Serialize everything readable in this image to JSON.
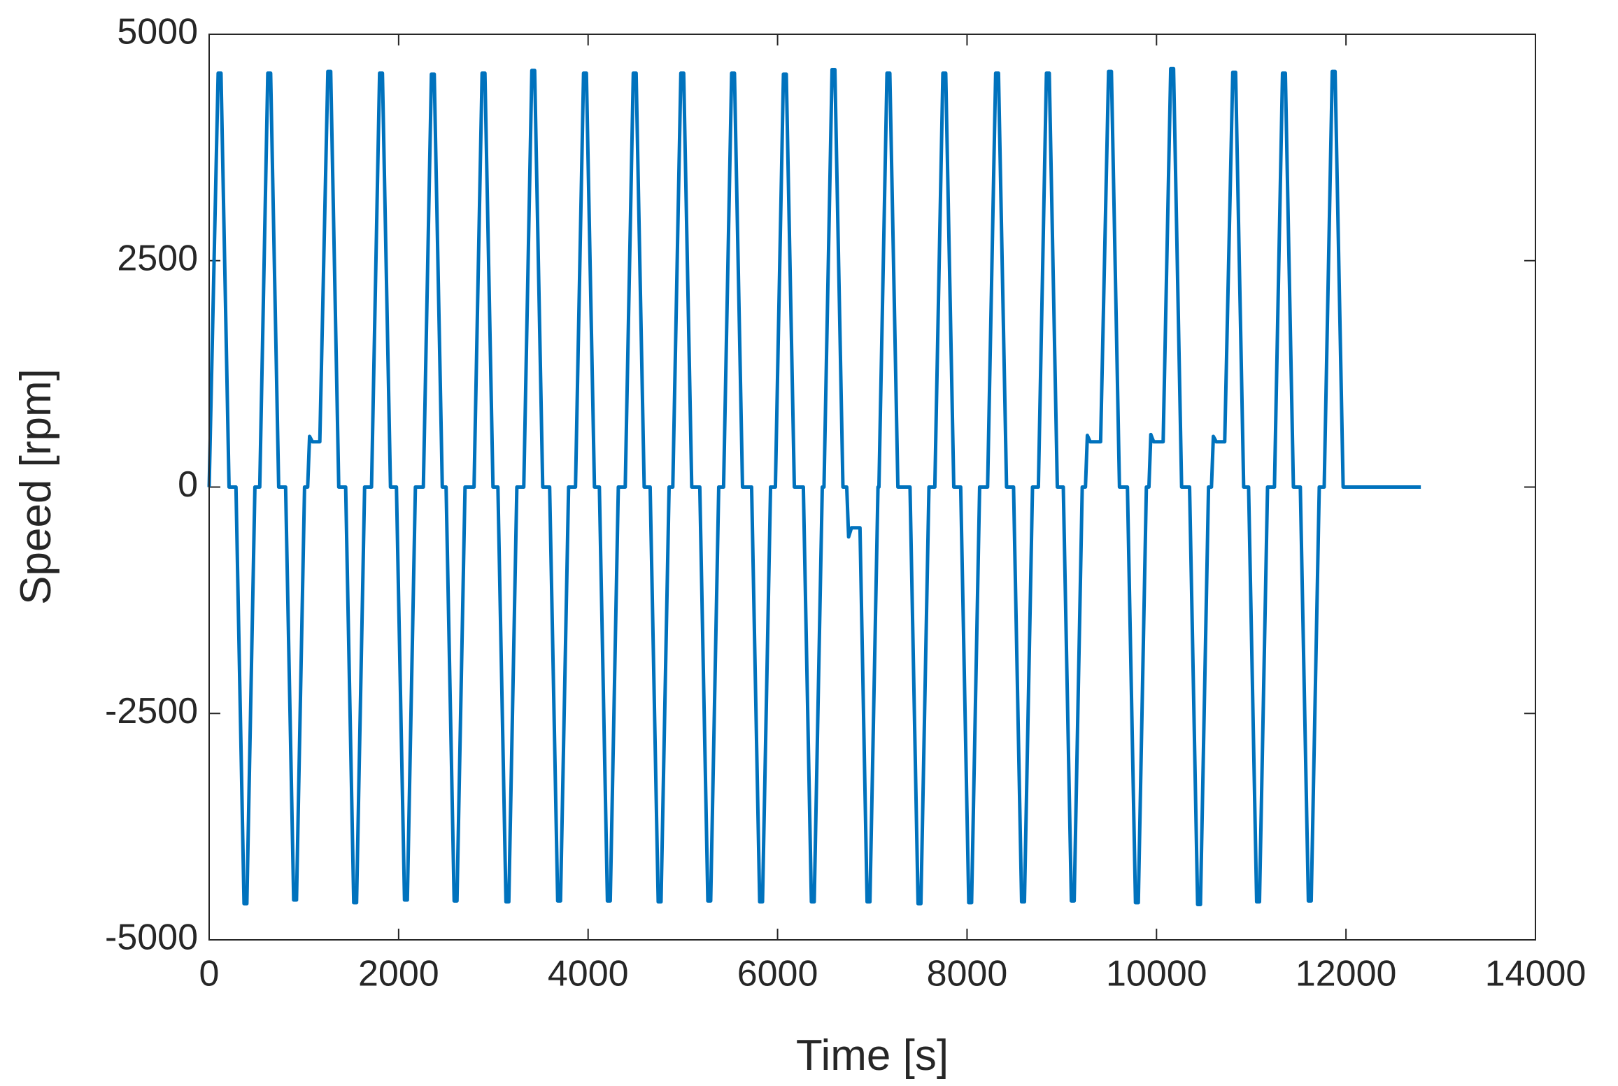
{
  "chart_data": {
    "type": "line",
    "x_label": "Time [s]",
    "y_label": "Speed [rpm]",
    "color": "#0072bd",
    "xlim": [
      0,
      14000
    ],
    "xticks": [
      0,
      2000,
      4000,
      6000,
      8000,
      10000,
      12000,
      14000
    ],
    "ylim": [
      -5000,
      5000
    ],
    "yticks": [
      -5000,
      -2500,
      0,
      2500,
      5000
    ],
    "grid": false,
    "x": [
      0,
      95,
      125,
      210,
      283,
      368,
      398,
      483,
      534,
      619,
      649,
      734,
      807,
      892,
      922,
      1007,
      1040,
      1060,
      1090,
      1168,
      1253,
      1283,
      1368,
      1441,
      1526,
      1556,
      1641,
      1714,
      1799,
      1829,
      1914,
      1977,
      2062,
      2092,
      2177,
      2261,
      2346,
      2376,
      2461,
      2501,
      2586,
      2616,
      2701,
      2796,
      2881,
      2911,
      2996,
      3048,
      3133,
      3163,
      3248,
      3321,
      3406,
      3436,
      3521,
      3594,
      3679,
      3709,
      3794,
      3867,
      3952,
      3982,
      4067,
      4119,
      4204,
      4234,
      4319,
      4392,
      4477,
      4507,
      4592,
      4655,
      4740,
      4770,
      4855,
      4894,
      4979,
      5009,
      5094,
      5179,
      5264,
      5294,
      5379,
      5430,
      5515,
      5545,
      5630,
      5726,
      5811,
      5841,
      5926,
      5977,
      6062,
      6092,
      6177,
      6272,
      6357,
      6387,
      6472,
      6490,
      6575,
      6605,
      6690,
      6730,
      6750,
      6780,
      6870,
      6945,
      6975,
      7060,
      7070,
      7155,
      7185,
      7270,
      7398,
      7483,
      7513,
      7598,
      7660,
      7745,
      7775,
      7860,
      7933,
      8018,
      8048,
      8133,
      8217,
      8302,
      8332,
      8417,
      8491,
      8576,
      8606,
      8691,
      8753,
      8838,
      8868,
      8953,
      9016,
      9101,
      9131,
      9216,
      9250,
      9270,
      9300,
      9410,
      9494,
      9524,
      9609,
      9693,
      9778,
      9808,
      9893,
      9920,
      9940,
      9970,
      10070,
      10150,
      10180,
      10265,
      10349,
      10434,
      10464,
      10549,
      10580,
      10600,
      10630,
      10720,
      10805,
      10835,
      10920,
      10972,
      11057,
      11087,
      11172,
      11245,
      11330,
      11360,
      11445,
      11518,
      11603,
      11633,
      11718,
      11770,
      11855,
      11885,
      11970,
      12790
    ],
    "values": [
      0,
      4570,
      4570,
      0,
      0,
      -4600,
      -4600,
      0,
      0,
      4570,
      4570,
      0,
      0,
      -4560,
      -4560,
      0,
      0,
      560,
      500,
      500,
      4590,
      4590,
      0,
      0,
      -4590,
      -4590,
      0,
      0,
      4570,
      4570,
      0,
      0,
      -4560,
      -4560,
      0,
      0,
      4560,
      4560,
      0,
      0,
      -4570,
      -4570,
      0,
      0,
      4570,
      4570,
      0,
      0,
      -4580,
      -4580,
      0,
      0,
      4600,
      4600,
      0,
      0,
      -4570,
      -4570,
      0,
      0,
      4570,
      4570,
      0,
      0,
      -4570,
      -4570,
      0,
      0,
      4570,
      4570,
      0,
      0,
      -4580,
      -4580,
      0,
      0,
      4570,
      4570,
      0,
      0,
      -4570,
      -4570,
      0,
      0,
      4570,
      4570,
      0,
      0,
      -4580,
      -4580,
      0,
      0,
      4560,
      4560,
      0,
      0,
      -4580,
      -4580,
      0,
      0,
      4610,
      4610,
      0,
      0,
      -550,
      -450,
      -450,
      -4580,
      -4580,
      0,
      0,
      4570,
      4570,
      0,
      0,
      -4600,
      -4600,
      0,
      0,
      4570,
      4570,
      0,
      0,
      -4590,
      -4590,
      0,
      0,
      4570,
      4570,
      0,
      0,
      -4580,
      -4580,
      0,
      0,
      4570,
      4570,
      0,
      0,
      -4570,
      -4570,
      0,
      0,
      570,
      500,
      500,
      4590,
      4590,
      0,
      0,
      -4590,
      -4590,
      0,
      0,
      580,
      500,
      500,
      4620,
      4620,
      0,
      0,
      -4610,
      -4610,
      0,
      0,
      560,
      500,
      500,
      4580,
      4580,
      0,
      0,
      -4580,
      -4580,
      0,
      0,
      4570,
      4570,
      0,
      0,
      -4570,
      -4570,
      0,
      0,
      4590,
      4590,
      0,
      0
    ]
  }
}
